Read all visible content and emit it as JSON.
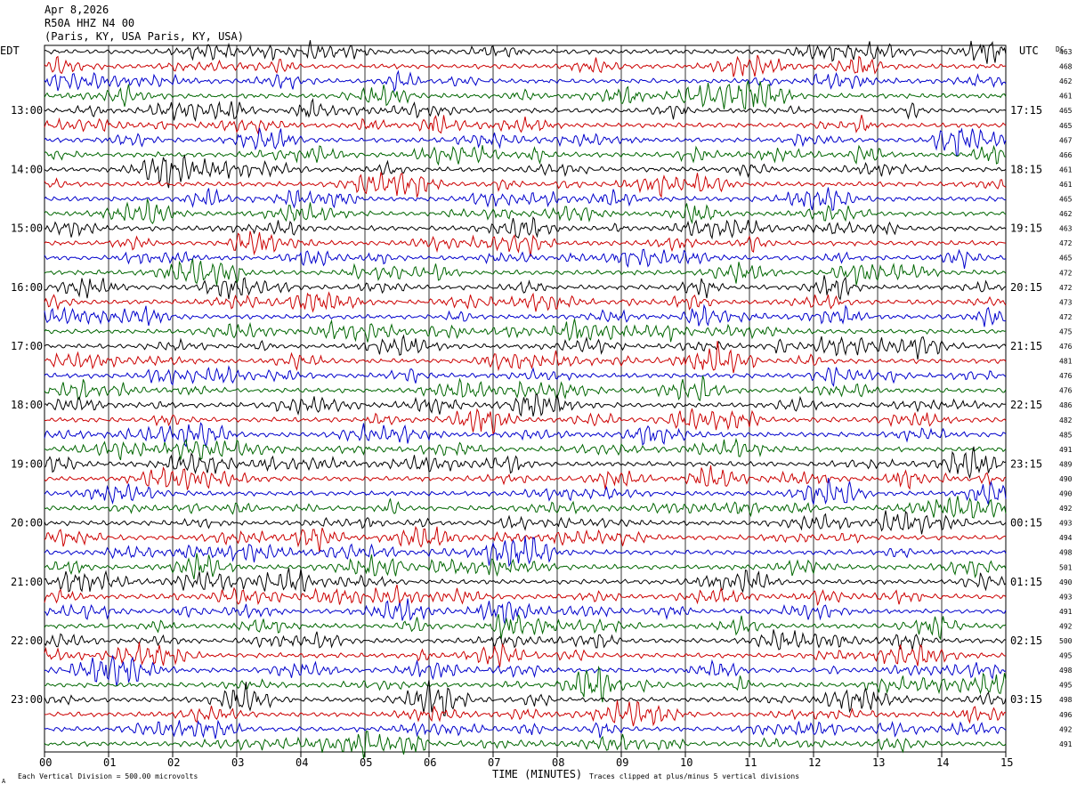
{
  "header": {
    "date": "Apr 8,2026",
    "station": "R50A HHZ N4 00",
    "location": "(Paris, KY, USA Paris, KY, USA)"
  },
  "labels": {
    "left_tz": "EDT",
    "right_tz": "UTC",
    "dc": "DC",
    "xlabel": "TIME (MINUTES)",
    "note_left": "Each Vertical Division =  500.00 microvolts",
    "note_right": "Traces clipped at plus/minus 5 vertical divisions",
    "corner": "A"
  },
  "colors": {
    "trace_cycle": [
      "#000000",
      "#cc0000",
      "#0000cc",
      "#006600"
    ],
    "grid": "#000000"
  },
  "chart_data": {
    "type": "line",
    "title": "R50A HHZ N4 00",
    "xlabel": "TIME (MINUTES)",
    "xlim": [
      0,
      15
    ],
    "x_ticks": [
      "00",
      "01",
      "02",
      "03",
      "04",
      "05",
      "06",
      "07",
      "08",
      "09",
      "10",
      "11",
      "12",
      "13",
      "14",
      "15"
    ],
    "edt_hour_labels": [
      "13:00",
      "14:00",
      "15:00",
      "16:00",
      "17:00",
      "18:00",
      "19:00",
      "20:00",
      "21:00",
      "22:00",
      "23:00"
    ],
    "utc_hour_labels": [
      "17:15",
      "18:15",
      "19:15",
      "20:15",
      "21:15",
      "22:15",
      "23:15",
      "00:15",
      "01:15",
      "02:15",
      "03:15"
    ],
    "traces_per_hour": 4,
    "trace_count": 48,
    "dc_offsets": [
      "463",
      "468",
      "462",
      "461",
      "465",
      "465",
      "467",
      "466",
      "461",
      "461",
      "465",
      "462",
      "463",
      "472",
      "465",
      "472",
      "472",
      "473",
      "472",
      "475",
      "476",
      "481",
      "476",
      "476",
      "486",
      "482",
      "485",
      "491",
      "489",
      "490",
      "490",
      "492",
      "493",
      "494",
      "498",
      "501",
      "490",
      "493",
      "491",
      "492",
      "500",
      "495",
      "498",
      "495",
      "498",
      "496",
      "492",
      "491"
    ]
  }
}
